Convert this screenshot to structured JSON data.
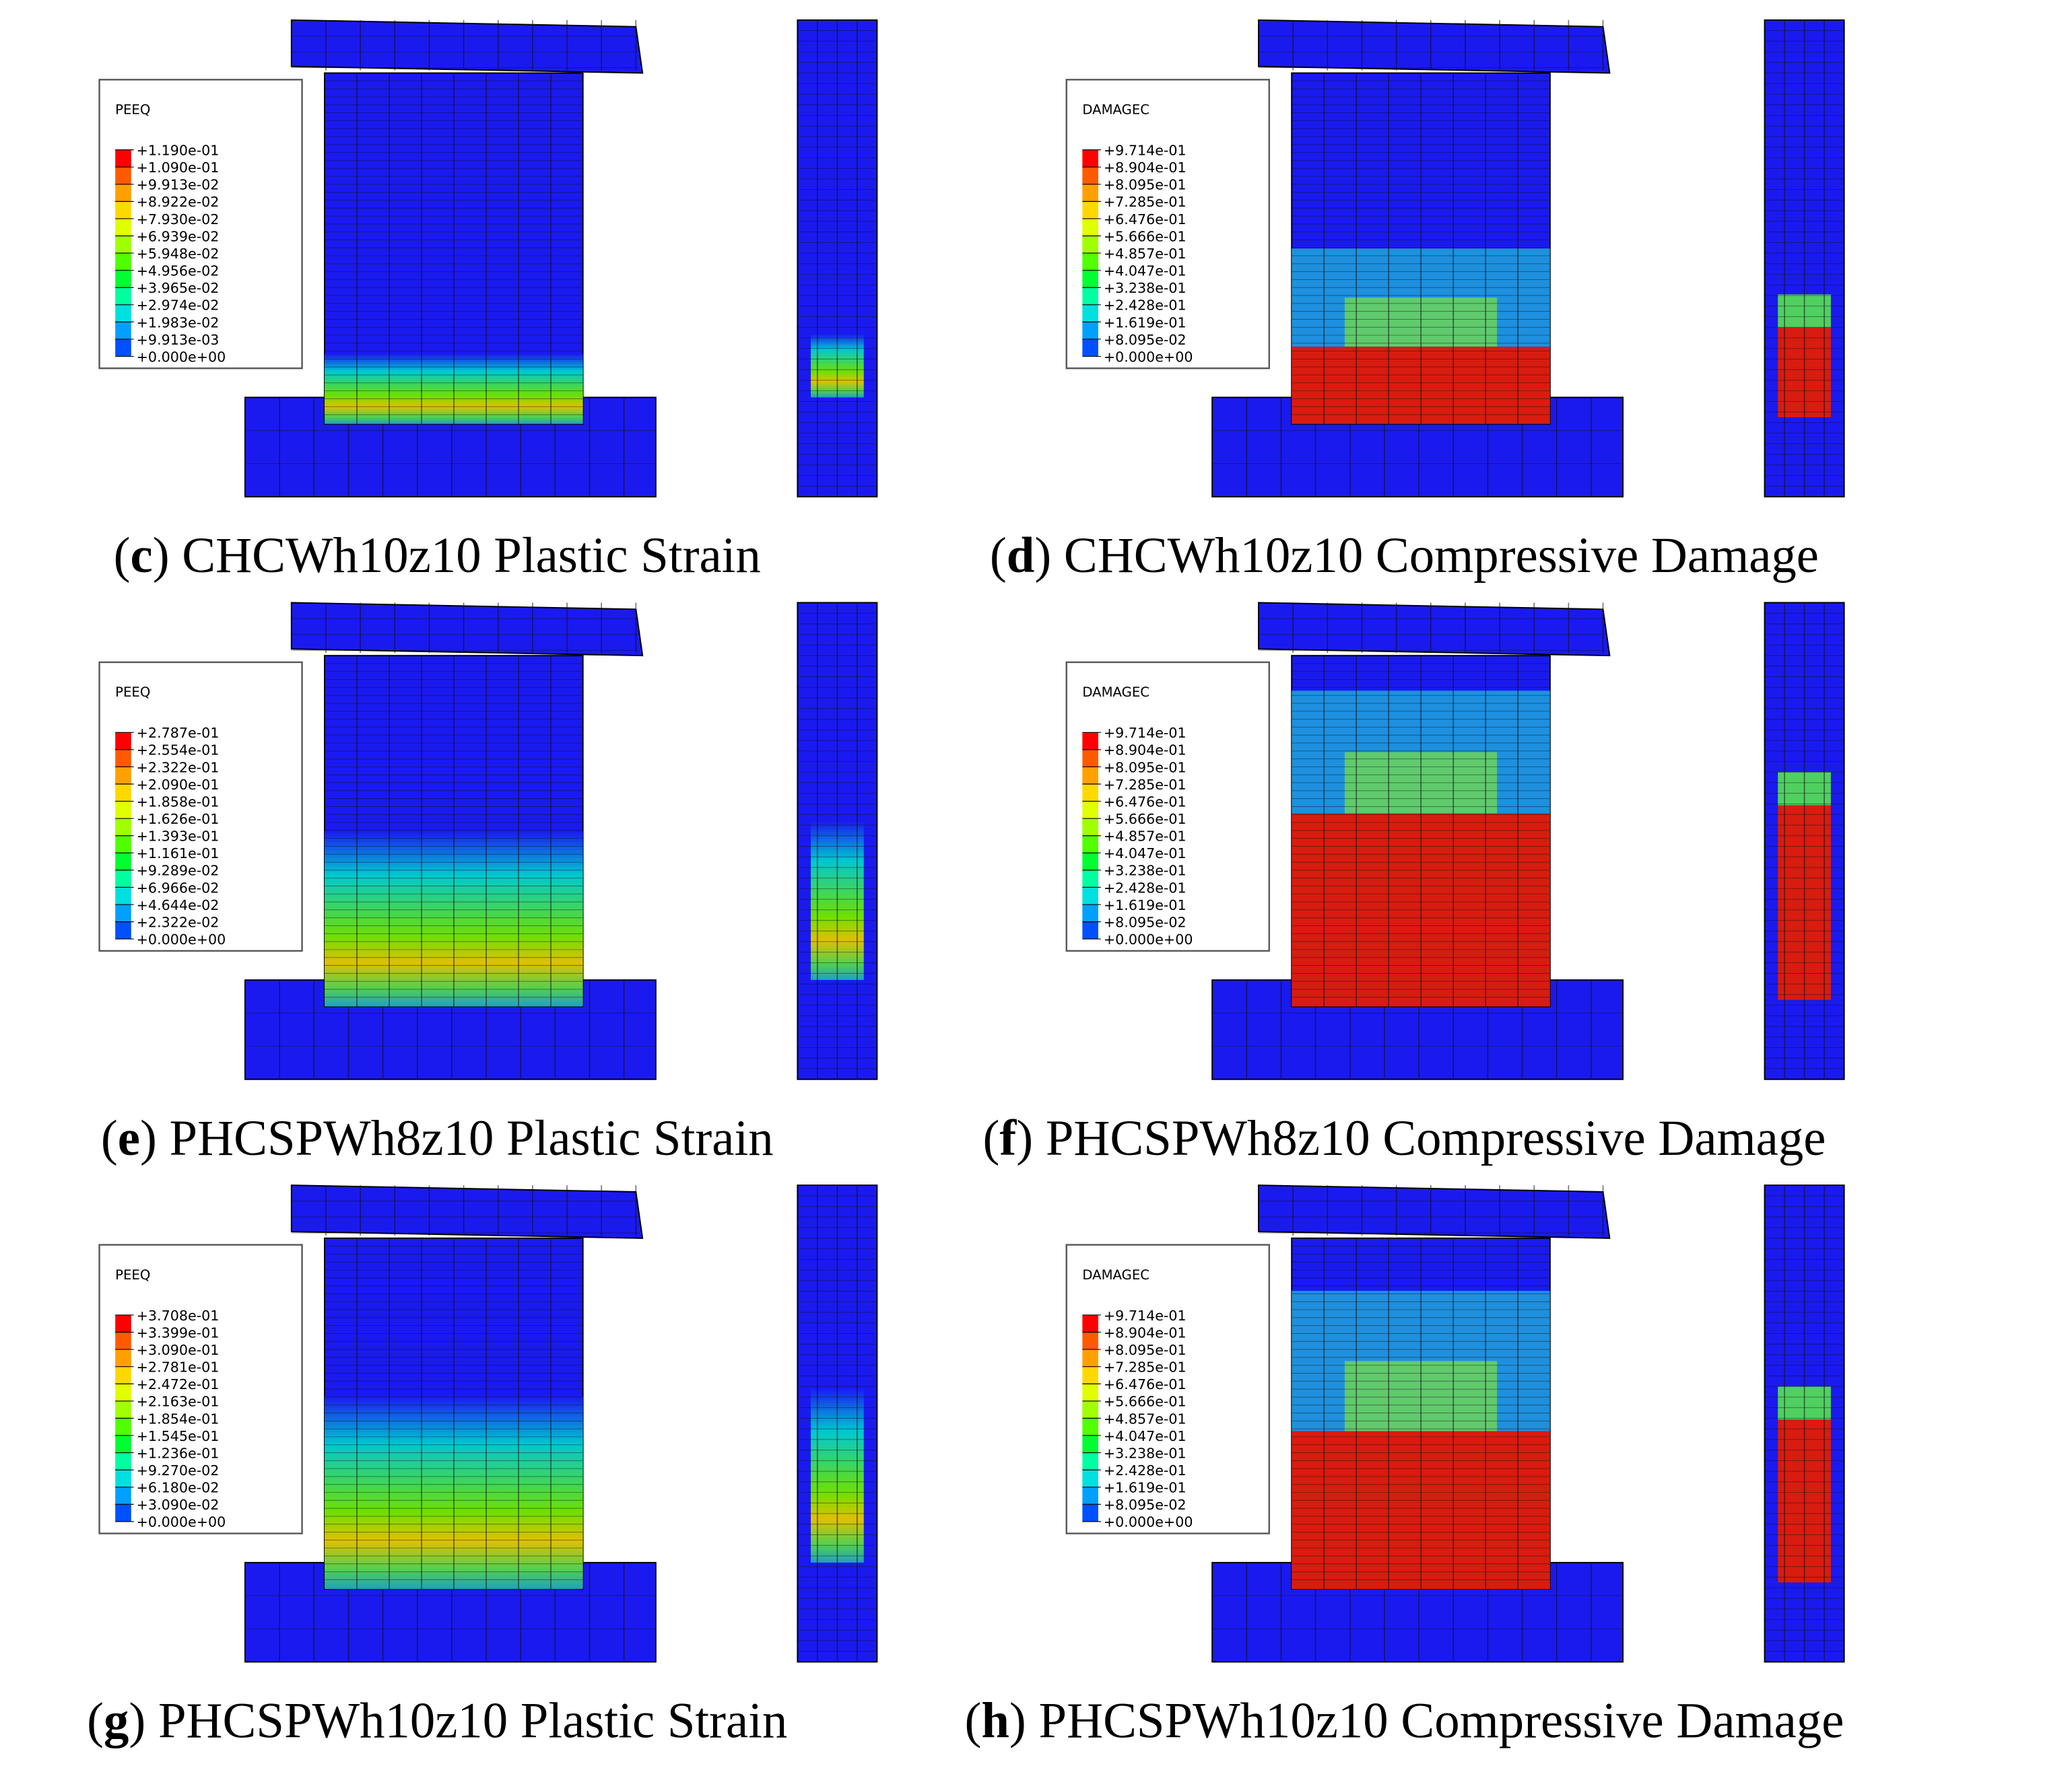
{
  "panels": [
    {
      "caption": {
        "open": "(",
        "letter": "c",
        "text": ") CHCWh10z10 Plastic Strain"
      },
      "legend": {
        "title": "PEEQ",
        "values": [
          "+1.190e-01",
          "+1.090e-01",
          "+9.913e-02",
          "+8.922e-02",
          "+7.930e-02",
          "+6.939e-02",
          "+5.948e-02",
          "+4.956e-02",
          "+3.965e-02",
          "+2.974e-02",
          "+1.983e-02",
          "+9.913e-03",
          "+0.000e+00"
        ]
      }
    },
    {
      "caption": {
        "open": "(",
        "letter": "d",
        "text": ") CHCWh10z10 Compressive Damage"
      },
      "legend": {
        "title": "DAMAGEC",
        "values": [
          "+9.714e-01",
          "+8.904e-01",
          "+8.095e-01",
          "+7.285e-01",
          "+6.476e-01",
          "+5.666e-01",
          "+4.857e-01",
          "+4.047e-01",
          "+3.238e-01",
          "+2.428e-01",
          "+1.619e-01",
          "+8.095e-02",
          "+0.000e+00"
        ]
      }
    },
    {
      "caption": {
        "open": "(",
        "letter": "e",
        "text": ") PHCSPWh8z10 Plastic Strain"
      },
      "legend": {
        "title": "PEEQ",
        "values": [
          "+2.787e-01",
          "+2.554e-01",
          "+2.322e-01",
          "+2.090e-01",
          "+1.858e-01",
          "+1.626e-01",
          "+1.393e-01",
          "+1.161e-01",
          "+9.289e-02",
          "+6.966e-02",
          "+4.644e-02",
          "+2.322e-02",
          "+0.000e+00"
        ]
      }
    },
    {
      "caption": {
        "open": "(",
        "letter": "f",
        "text": ") PHCSPWh8z10 Compressive Damage"
      },
      "legend": {
        "title": "DAMAGEC",
        "values": [
          "+9.714e-01",
          "+8.904e-01",
          "+8.095e-01",
          "+7.285e-01",
          "+6.476e-01",
          "+5.666e-01",
          "+4.857e-01",
          "+4.047e-01",
          "+3.238e-01",
          "+2.428e-01",
          "+1.619e-01",
          "+8.095e-02",
          "+0.000e+00"
        ]
      }
    },
    {
      "caption": {
        "open": "(",
        "letter": "g",
        "text": ") PHCSPWh10z10 Plastic Strain"
      },
      "legend": {
        "title": "PEEQ",
        "values": [
          "+3.708e-01",
          "+3.399e-01",
          "+3.090e-01",
          "+2.781e-01",
          "+2.472e-01",
          "+2.163e-01",
          "+1.854e-01",
          "+1.545e-01",
          "+1.236e-01",
          "+9.270e-02",
          "+6.180e-02",
          "+3.090e-02",
          "+0.000e+00"
        ]
      }
    },
    {
      "caption": {
        "open": "(",
        "letter": "h",
        "text": ") PHCSPWh10z10 Compressive Damage"
      },
      "legend": {
        "title": "DAMAGEC",
        "values": [
          "+9.714e-01",
          "+8.904e-01",
          "+8.095e-01",
          "+7.285e-01",
          "+6.476e-01",
          "+5.666e-01",
          "+4.857e-01",
          "+4.047e-01",
          "+3.238e-01",
          "+2.428e-01",
          "+1.619e-01",
          "+8.095e-02",
          "+0.000e+00"
        ]
      }
    }
  ]
}
